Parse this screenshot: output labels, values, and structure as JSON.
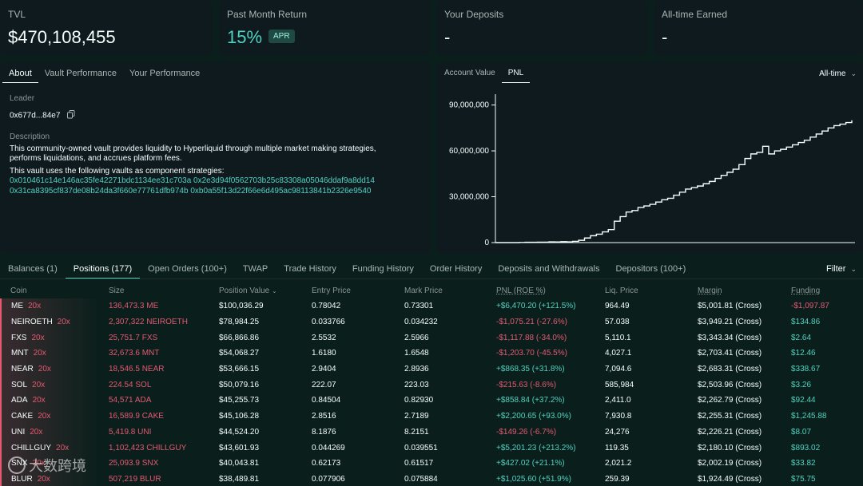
{
  "stats": {
    "tvl": {
      "label": "TVL",
      "value": "$470,108,455"
    },
    "past_month": {
      "label": "Past Month Return",
      "value": "15%",
      "badge": "APR"
    },
    "deposits": {
      "label": "Your Deposits",
      "value": "-"
    },
    "earned": {
      "label": "All-time Earned",
      "value": "-"
    }
  },
  "about": {
    "tabs": [
      "About",
      "Vault Performance",
      "Your Performance"
    ],
    "leader_label": "Leader",
    "leader": "0x677d...84e7",
    "description_label": "Description",
    "description1": "This community-owned vault provides liquidity to Hyperliquid through multiple market making strategies, performs liquidations, and accrues platform fees.",
    "description2": "This vault uses the following vaults as component strategies:",
    "vaults_line1": "0x010461c14e146ac35fe42271bdc1134ee31c703a 0x2e3d94f0562703b25c83308a05046ddaf9a8dd14",
    "vaults_line2": "0x31ca8395cf837de08b24da3f660e77761dfb974b 0xb0a55f13d22f66e6d495ac98113841b2326e9540"
  },
  "chart_panel": {
    "tabs": [
      "Account Value",
      "PNL"
    ],
    "range": "All-time"
  },
  "chart_data": {
    "type": "line",
    "title": "",
    "xlabel": "",
    "ylabel": "",
    "ylim": [
      0,
      95000000
    ],
    "yticks": [
      0,
      30000000,
      60000000,
      90000000
    ],
    "ytick_labels": [
      "0",
      "30,000,000",
      "60,000,000",
      "90,000,000"
    ],
    "series": [
      {
        "values": [
          0,
          0,
          0,
          0,
          100000,
          200000,
          200000,
          300000,
          300000,
          500000,
          400000,
          600000,
          500000,
          800000,
          1500000,
          3000000,
          4500000,
          5500000,
          7000000,
          8500000,
          14000000,
          17000000,
          20000000,
          21000000,
          23000000,
          24000000,
          25000000,
          26500000,
          28000000,
          29000000,
          31000000,
          33000000,
          35000000,
          36000000,
          37000000,
          38500000,
          40000000,
          42000000,
          44000000,
          46000000,
          48000000,
          51000000,
          55000000,
          58000000,
          59000000,
          63000000,
          58000000,
          60000000,
          61000000,
          62500000,
          64000000,
          65500000,
          67000000,
          69000000,
          71000000,
          73000000,
          75000000,
          76500000,
          77500000,
          78500000,
          80000000
        ]
      }
    ]
  },
  "positions": {
    "tabs": [
      "Balances (1)",
      "Positions (177)",
      "Open Orders (100+)",
      "TWAP",
      "Trade History",
      "Funding History",
      "Order History",
      "Deposits and Withdrawals",
      "Depositors (100+)"
    ],
    "filter": "Filter",
    "headers": [
      "Coin",
      "Size",
      "Position Value",
      "Entry Price",
      "Mark Price",
      "PNL (ROE %)",
      "Liq. Price",
      "Margin",
      "Funding"
    ],
    "rows": [
      {
        "coin": "ME",
        "lev": "20x",
        "size": "136,473.3 ME",
        "value": "$100,036.29",
        "entry": "0.78042",
        "mark": "0.73301",
        "pnl": "+$6,470.20 (+121.5%)",
        "liq": "964.49",
        "margin": "$5,001.81 (Cross)",
        "funding": "-$1,097.87"
      },
      {
        "coin": "NEIROETH",
        "lev": "20x",
        "size": "2,307,322 NEIROETH",
        "value": "$78,984.25",
        "entry": "0.033766",
        "mark": "0.034232",
        "pnl": "-$1,075.21 (-27.6%)",
        "liq": "57.038",
        "margin": "$3,949.21 (Cross)",
        "funding": "$134.86"
      },
      {
        "coin": "FXS",
        "lev": "20x",
        "size": "25,751.7 FXS",
        "value": "$66,866.86",
        "entry": "2.5532",
        "mark": "2.5966",
        "pnl": "-$1,117.88 (-34.0%)",
        "liq": "5,110.1",
        "margin": "$3,343.34 (Cross)",
        "funding": "$2.64"
      },
      {
        "coin": "MNT",
        "lev": "20x",
        "size": "32,673.6 MNT",
        "value": "$54,068.27",
        "entry": "1.6180",
        "mark": "1.6548",
        "pnl": "-$1,203.70 (-45.5%)",
        "liq": "4,027.1",
        "margin": "$2,703.41 (Cross)",
        "funding": "$12.46"
      },
      {
        "coin": "NEAR",
        "lev": "20x",
        "size": "18,546.5 NEAR",
        "value": "$53,666.15",
        "entry": "2.9404",
        "mark": "2.8936",
        "pnl": "+$868.35 (+31.8%)",
        "liq": "7,094.6",
        "margin": "$2,683.31 (Cross)",
        "funding": "$338.67"
      },
      {
        "coin": "SOL",
        "lev": "20x",
        "size": "224.54 SOL",
        "value": "$50,079.16",
        "entry": "222.07",
        "mark": "223.03",
        "pnl": "-$215.63 (-8.6%)",
        "liq": "585,984",
        "margin": "$2,503.96 (Cross)",
        "funding": "$3.26"
      },
      {
        "coin": "ADA",
        "lev": "20x",
        "size": "54,571 ADA",
        "value": "$45,255.73",
        "entry": "0.84504",
        "mark": "0.82930",
        "pnl": "+$858.84 (+37.2%)",
        "liq": "2,411.0",
        "margin": "$2,262.79 (Cross)",
        "funding": "$92.44"
      },
      {
        "coin": "CAKE",
        "lev": "20x",
        "size": "16,589.9 CAKE",
        "value": "$45,106.28",
        "entry": "2.8516",
        "mark": "2.7189",
        "pnl": "+$2,200.65 (+93.0%)",
        "liq": "7,930.8",
        "margin": "$2,255.31 (Cross)",
        "funding": "$1,245.88"
      },
      {
        "coin": "UNI",
        "lev": "20x",
        "size": "5,419.8 UNI",
        "value": "$44,524.20",
        "entry": "8.1876",
        "mark": "8.2151",
        "pnl": "-$149.26 (-6.7%)",
        "liq": "24,276",
        "margin": "$2,226.21 (Cross)",
        "funding": "$8.07"
      },
      {
        "coin": "CHILLGUY",
        "lev": "20x",
        "size": "1,102,423 CHILLGUY",
        "value": "$43,601.93",
        "entry": "0.044269",
        "mark": "0.039551",
        "pnl": "+$5,201.23 (+213.2%)",
        "liq": "119.35",
        "margin": "$2,180.10 (Cross)",
        "funding": "$893.02"
      },
      {
        "coin": "SNX",
        "lev": "20x",
        "size": "25,093.9 SNX",
        "value": "$40,043.81",
        "entry": "0.62173",
        "mark": "0.61517",
        "pnl": "+$427.02 (+21.1%)",
        "liq": "2,021.2",
        "margin": "$2,002.19 (Cross)",
        "funding": "$33.82"
      },
      {
        "coin": "BLUR",
        "lev": "20x",
        "size": "507,219 BLUR",
        "value": "$38,489.81",
        "entry": "0.077906",
        "mark": "0.075884",
        "pnl": "+$1,025.60 (+51.9%)",
        "liq": "259.39",
        "margin": "$1,924.49 (Cross)",
        "funding": "$75.75"
      }
    ]
  },
  "watermark": "大数跨境"
}
